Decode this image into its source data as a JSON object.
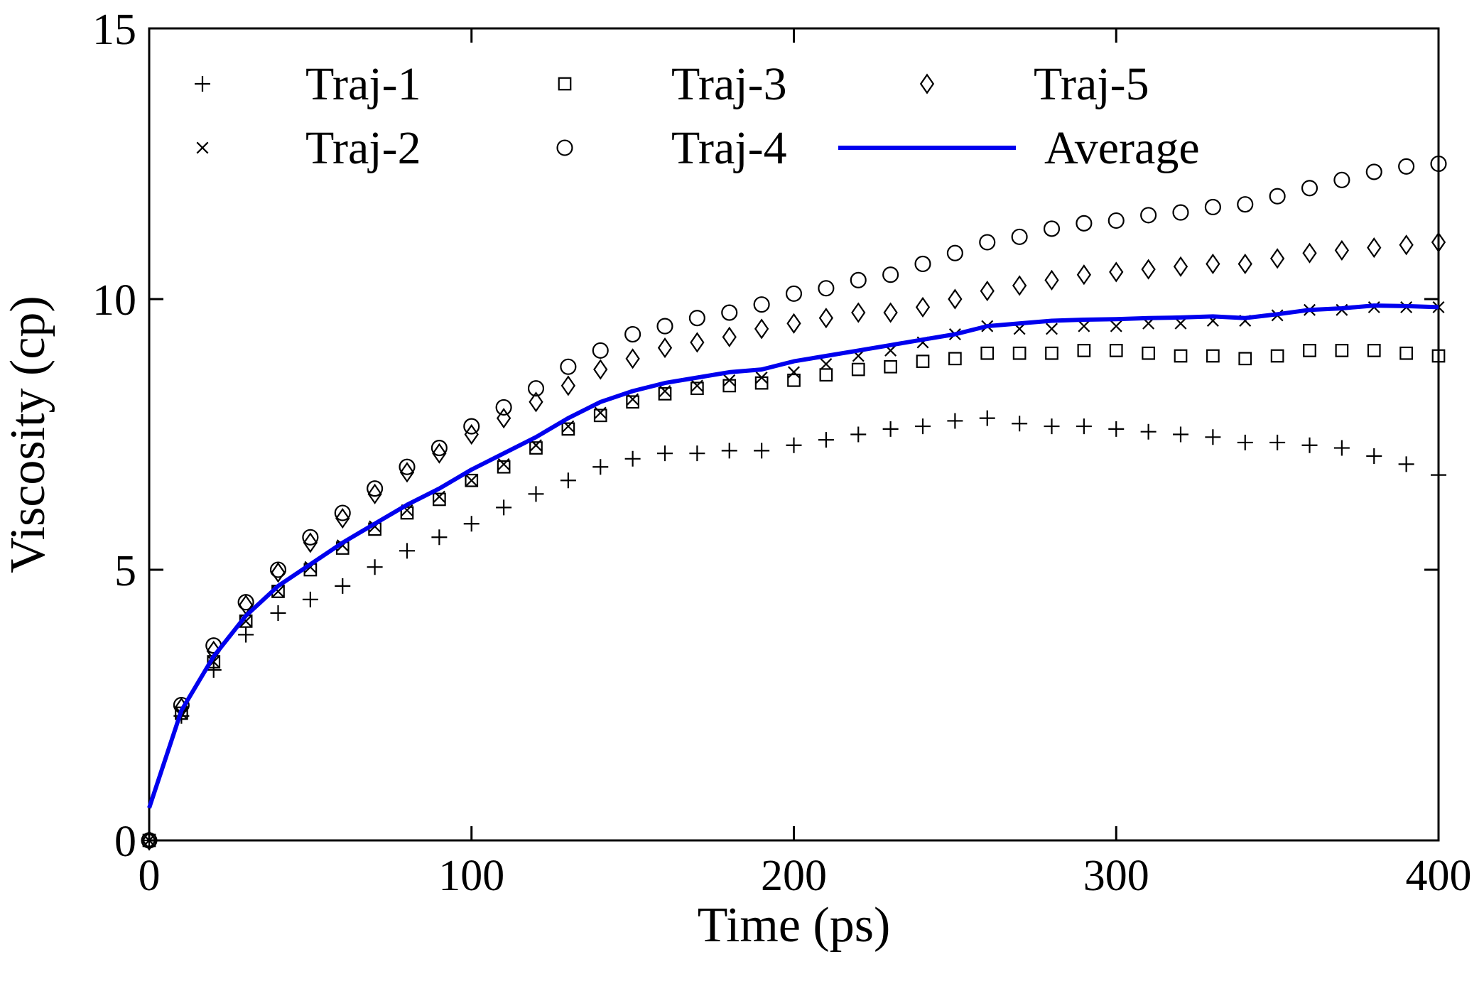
{
  "chart_data": {
    "type": "scatter",
    "xlabel": "Time (ps)",
    "ylabel": "Viscosity (cp)",
    "xlim": [
      0,
      400
    ],
    "ylim": [
      0,
      15
    ],
    "xticks": [
      0,
      100,
      200,
      300,
      400
    ],
    "yticks": [
      0,
      5,
      10,
      15
    ],
    "xtick_labels": [
      "0",
      "100",
      "200",
      "300",
      "400"
    ],
    "ytick_labels": [
      "0",
      "5",
      "10",
      "15"
    ],
    "grid": false,
    "legend_position": "top",
    "x": [
      0,
      10,
      20,
      30,
      40,
      50,
      60,
      70,
      80,
      90,
      100,
      110,
      120,
      130,
      140,
      150,
      160,
      170,
      180,
      190,
      200,
      210,
      220,
      230,
      240,
      250,
      260,
      270,
      280,
      290,
      300,
      310,
      320,
      330,
      340,
      350,
      360,
      370,
      380,
      390,
      400
    ],
    "series": [
      {
        "name": "Traj-1",
        "marker": "plus",
        "values": [
          0,
          2.3,
          3.15,
          3.8,
          4.2,
          4.45,
          4.7,
          5.05,
          5.35,
          5.6,
          5.85,
          6.15,
          6.4,
          6.65,
          6.9,
          7.05,
          7.15,
          7.15,
          7.2,
          7.2,
          7.3,
          7.4,
          7.5,
          7.6,
          7.65,
          7.75,
          7.8,
          7.7,
          7.65,
          7.65,
          7.6,
          7.55,
          7.5,
          7.45,
          7.35,
          7.35,
          7.3,
          7.25,
          7.1,
          6.95,
          6.75
        ]
      },
      {
        "name": "Traj-2",
        "marker": "x",
        "values": [
          0,
          2.35,
          3.3,
          4.05,
          4.6,
          5.05,
          5.45,
          5.8,
          6.1,
          6.35,
          6.65,
          6.95,
          7.3,
          7.65,
          7.9,
          8.15,
          8.3,
          8.4,
          8.5,
          8.55,
          8.65,
          8.8,
          8.95,
          9.05,
          9.2,
          9.35,
          9.5,
          9.45,
          9.45,
          9.5,
          9.5,
          9.55,
          9.55,
          9.6,
          9.6,
          9.7,
          9.8,
          9.8,
          9.85,
          9.85,
          9.85
        ]
      },
      {
        "name": "Traj-3",
        "marker": "square",
        "values": [
          0,
          2.35,
          3.3,
          4.05,
          4.6,
          5.0,
          5.4,
          5.75,
          6.05,
          6.3,
          6.65,
          6.9,
          7.25,
          7.6,
          7.85,
          8.1,
          8.25,
          8.35,
          8.4,
          8.45,
          8.5,
          8.6,
          8.7,
          8.75,
          8.85,
          8.9,
          9.0,
          9.0,
          9.0,
          9.05,
          9.05,
          9.0,
          8.95,
          8.95,
          8.9,
          8.95,
          9.05,
          9.05,
          9.05,
          9.0,
          8.95
        ]
      },
      {
        "name": "Traj-4",
        "marker": "circle",
        "values": [
          0,
          2.5,
          3.6,
          4.4,
          5.0,
          5.6,
          6.05,
          6.5,
          6.9,
          7.25,
          7.65,
          8.0,
          8.35,
          8.75,
          9.05,
          9.35,
          9.5,
          9.65,
          9.75,
          9.9,
          10.1,
          10.2,
          10.35,
          10.45,
          10.65,
          10.85,
          11.05,
          11.15,
          11.3,
          11.4,
          11.45,
          11.55,
          11.6,
          11.7,
          11.75,
          11.9,
          12.05,
          12.2,
          12.35,
          12.45,
          12.5
        ]
      },
      {
        "name": "Traj-5",
        "marker": "diamond",
        "values": [
          0,
          2.45,
          3.5,
          4.35,
          4.95,
          5.5,
          5.95,
          6.4,
          6.8,
          7.15,
          7.5,
          7.8,
          8.1,
          8.4,
          8.7,
          8.9,
          9.1,
          9.2,
          9.3,
          9.45,
          9.55,
          9.65,
          9.75,
          9.75,
          9.85,
          10.0,
          10.15,
          10.25,
          10.35,
          10.45,
          10.5,
          10.55,
          10.6,
          10.65,
          10.65,
          10.75,
          10.85,
          10.9,
          10.95,
          11.0,
          11.05
        ]
      },
      {
        "name": "Average",
        "marker": "line",
        "color": "#0000ee",
        "values": [
          0.6,
          2.4,
          3.4,
          4.15,
          4.7,
          5.1,
          5.5,
          5.85,
          6.2,
          6.5,
          6.85,
          7.15,
          7.45,
          7.8,
          8.1,
          8.3,
          8.45,
          8.55,
          8.65,
          8.7,
          8.85,
          8.95,
          9.05,
          9.15,
          9.25,
          9.35,
          9.5,
          9.55,
          9.6,
          9.62,
          9.63,
          9.65,
          9.66,
          9.68,
          9.65,
          9.72,
          9.8,
          9.83,
          9.88,
          9.87,
          9.85
        ]
      }
    ]
  }
}
